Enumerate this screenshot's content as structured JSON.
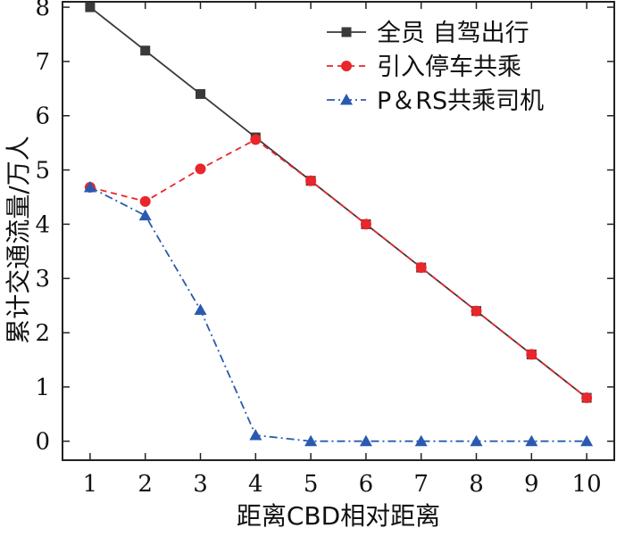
{
  "chart_data": {
    "type": "line",
    "title": "",
    "xlabel": "距离CBD相对距离",
    "ylabel": "累计交通流量/万人",
    "x": [
      1,
      2,
      3,
      4,
      5,
      6,
      7,
      8,
      9,
      10
    ],
    "xlim": [
      0.5,
      10.5
    ],
    "ylim": [
      -0.35,
      8.1
    ],
    "xticks": [
      1,
      2,
      3,
      4,
      5,
      6,
      7,
      8,
      9,
      10
    ],
    "yticks": [
      0,
      1,
      2,
      3,
      4,
      5,
      6,
      7,
      8
    ],
    "grid": false,
    "legend_position": "top-right",
    "series": [
      {
        "name": "全员 自驾出行",
        "values": [
          8.0,
          7.2,
          6.4,
          5.6,
          4.8,
          4.0,
          3.2,
          2.4,
          1.6,
          0.8
        ],
        "color": "#3a3a3a",
        "line_style": "solid",
        "marker": "square"
      },
      {
        "name": "引入停车共乘",
        "values": [
          4.68,
          4.42,
          5.02,
          5.56,
          4.8,
          4.0,
          3.2,
          2.4,
          1.6,
          0.8
        ],
        "color": "#e8262b",
        "line_style": "dashed",
        "marker": "circle"
      },
      {
        "name": "P＆RS共乘司机",
        "values": [
          4.68,
          4.16,
          2.42,
          0.11,
          0.0,
          0.0,
          0.0,
          0.0,
          0.0,
          0.0
        ],
        "color": "#2a5ab0",
        "line_style": "dashdot",
        "marker": "triangle"
      }
    ]
  }
}
